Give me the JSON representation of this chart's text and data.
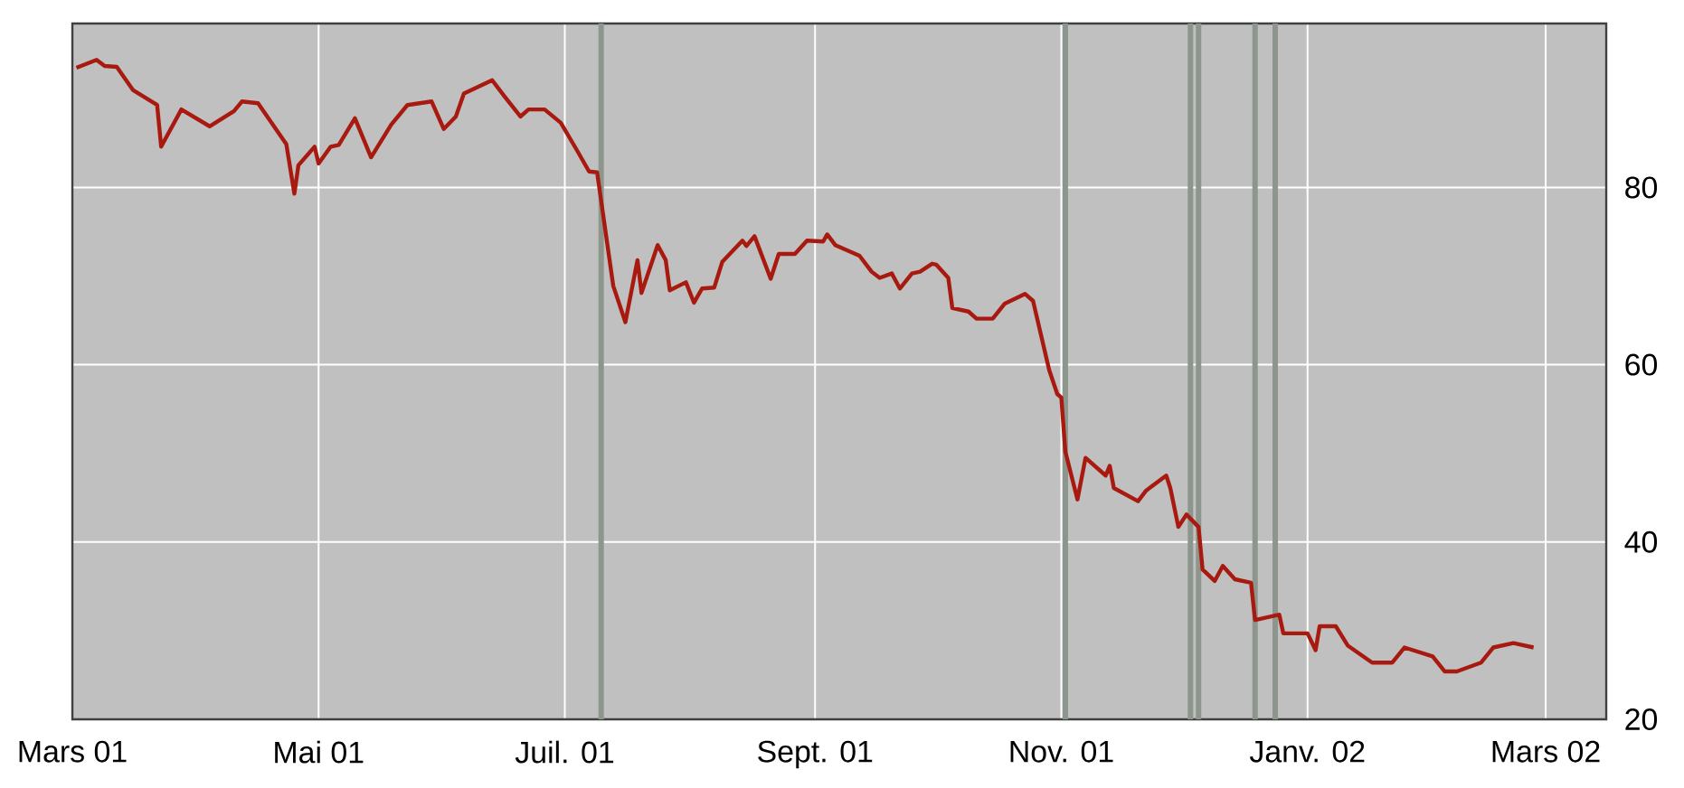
{
  "chart_data": {
    "type": "line",
    "x": [
      "2001-03-02",
      "2001-03-07",
      "2001-03-09",
      "2001-03-12",
      "2001-03-16",
      "2001-03-22",
      "2001-03-23",
      "2001-03-28",
      "2001-04-04",
      "2001-04-10",
      "2001-04-12",
      "2001-04-16",
      "2001-04-23",
      "2001-04-25",
      "2001-04-26",
      "2001-04-30",
      "2001-05-01",
      "2001-05-04",
      "2001-05-06",
      "2001-05-10",
      "2001-05-14",
      "2001-05-19",
      "2001-05-23",
      "2001-05-29",
      "2001-06-01",
      "2001-06-04",
      "2001-06-06",
      "2001-06-13",
      "2001-06-16",
      "2001-06-20",
      "2001-06-22",
      "2001-06-26",
      "2001-06-30",
      "2001-07-04",
      "2001-07-07",
      "2001-07-09",
      "2001-07-13",
      "2001-07-16",
      "2001-07-19",
      "2001-07-20",
      "2001-07-24",
      "2001-07-26",
      "2001-07-27",
      "2001-07-31",
      "2001-08-02",
      "2001-08-04",
      "2001-08-07",
      "2001-08-09",
      "2001-08-14",
      "2001-08-15",
      "2001-08-17",
      "2001-08-21",
      "2001-08-23",
      "2001-08-27",
      "2001-08-30",
      "2001-09-03",
      "2001-09-04",
      "2001-09-06",
      "2001-09-12",
      "2001-09-15",
      "2001-09-17",
      "2001-09-20",
      "2001-09-22",
      "2001-09-25",
      "2001-09-27",
      "2001-09-30",
      "2001-10-01",
      "2001-10-04",
      "2001-10-05",
      "2001-10-09",
      "2001-10-11",
      "2001-10-15",
      "2001-10-18",
      "2001-10-23",
      "2001-10-25",
      "2001-10-29",
      "2001-10-31",
      "2001-11-01",
      "2001-11-02",
      "2001-11-05",
      "2001-11-07",
      "2001-11-12",
      "2001-11-13",
      "2001-11-14",
      "2001-11-20",
      "2001-11-22",
      "2001-11-27",
      "2001-11-28",
      "2001-11-30",
      "2001-12-02",
      "2001-12-05",
      "2001-12-06",
      "2001-12-09",
      "2001-12-11",
      "2001-12-14",
      "2001-12-18",
      "2001-12-19",
      "2001-12-25",
      "2001-12-26",
      "2002-01-01",
      "2002-01-03",
      "2002-01-04",
      "2002-01-08",
      "2002-01-11",
      "2002-01-17",
      "2002-01-22",
      "2002-01-25",
      "2002-02-01",
      "2002-02-04",
      "2002-02-07",
      "2002-02-13",
      "2002-02-16",
      "2002-02-21",
      "2002-02-26"
    ],
    "series": [
      {
        "color": "#a81a10",
        "values": [
          93.5,
          94.4,
          93.7,
          93.6,
          91.0,
          89.3,
          84.6,
          88.8,
          86.9,
          88.6,
          89.7,
          89.5,
          84.9,
          79.3,
          82.5,
          84.6,
          82.7,
          84.6,
          84.8,
          87.8,
          83.4,
          87.1,
          89.3,
          89.7,
          86.6,
          88.0,
          90.6,
          92.1,
          90.3,
          88.0,
          88.8,
          88.8,
          87.3,
          84.2,
          81.8,
          81.7,
          68.9,
          64.8,
          71.8,
          68.1,
          73.5,
          71.8,
          68.4,
          69.3,
          67.0,
          68.6,
          68.7,
          71.6,
          74.0,
          73.4,
          74.5,
          69.7,
          72.5,
          72.5,
          74.0,
          73.9,
          74.7,
          73.5,
          72.3,
          70.5,
          69.8,
          70.3,
          68.6,
          70.3,
          70.5,
          71.4,
          71.3,
          69.8,
          66.4,
          66.0,
          65.2,
          65.2,
          66.9,
          68.0,
          67.2,
          59.4,
          56.7,
          56.3,
          50.2,
          44.8,
          49.5,
          47.5,
          48.6,
          46.1,
          44.6,
          45.8,
          47.5,
          46.1,
          41.7,
          43.1,
          41.7,
          36.9,
          35.6,
          37.3,
          35.8,
          35.4,
          31.2,
          31.8,
          29.7,
          29.7,
          27.8,
          30.5,
          30.5,
          28.3,
          26.4,
          26.4,
          28.1,
          27.1,
          25.4,
          25.4,
          26.4,
          28.1,
          28.6,
          28.1
        ]
      }
    ],
    "xlim": [
      "2001-03-01",
      "2002-03-16"
    ],
    "ylim": [
      20,
      98.5
    ],
    "xticks": [
      {
        "value": "2001-03-01",
        "label": "Mars 01"
      },
      {
        "value": "2001-05-01",
        "label": "Mai 01"
      },
      {
        "value": "2001-07-01",
        "label": "Juil. 01"
      },
      {
        "value": "2001-09-01",
        "label": "Sept. 01"
      },
      {
        "value": "2001-11-01",
        "label": "Nov. 01"
      },
      {
        "value": "2002-01-01",
        "label": "Janv. 02"
      },
      {
        "value": "2002-03-01",
        "label": "Mars 02"
      }
    ],
    "yticks": [
      20,
      40,
      60,
      80
    ],
    "grid": true,
    "ref_lines": [
      {
        "axis": "x",
        "value": "2001-07-10",
        "color": "#8c968c"
      },
      {
        "axis": "x",
        "value": "2001-11-02",
        "color": "#8c968c"
      },
      {
        "axis": "x",
        "value": "2001-12-03",
        "color": "#8c968c"
      },
      {
        "axis": "x",
        "value": "2001-12-05",
        "color": "#8c968c"
      },
      {
        "axis": "x",
        "value": "2001-12-19",
        "color": "#8c968c"
      },
      {
        "axis": "x",
        "value": "2001-12-24",
        "color": "#8c968c"
      }
    ]
  }
}
